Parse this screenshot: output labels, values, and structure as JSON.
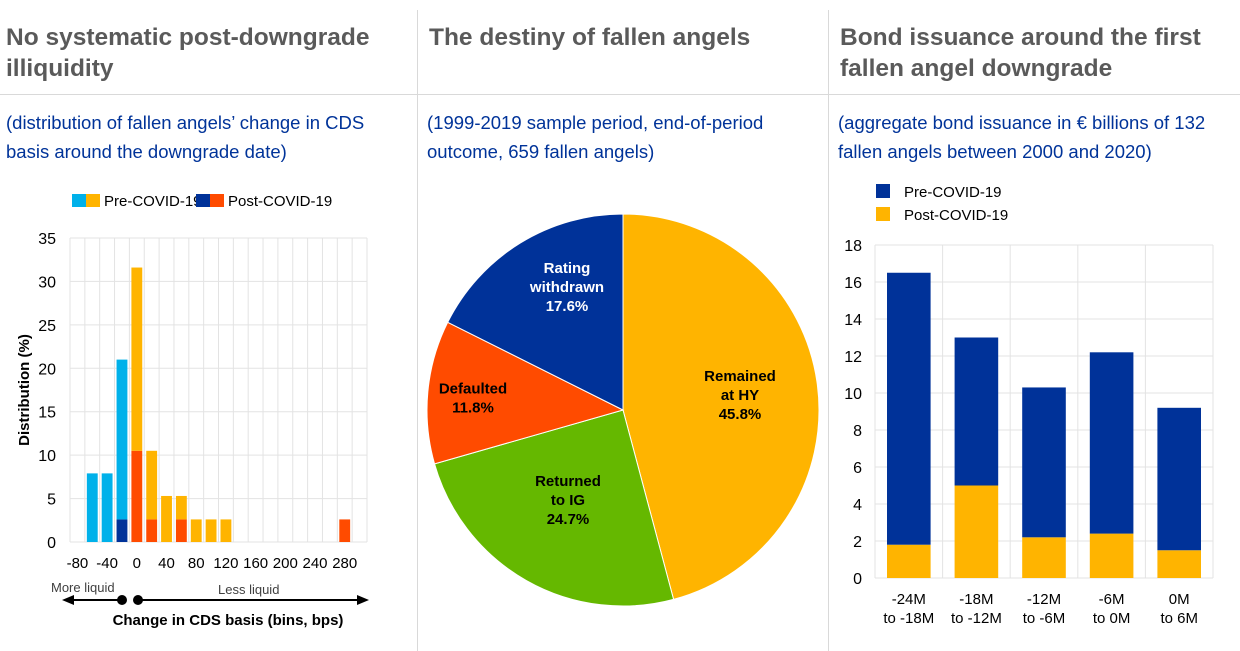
{
  "panels": [
    {
      "title": "No systematic post-downgrade illiquidity",
      "subtitle": "(distribution of fallen angels’ change in CDS basis around the downgrade date)"
    },
    {
      "title": "The destiny of fallen angels",
      "subtitle": "(1999-2019 sample period, end-of-period outcome, 659 fallen angels)"
    },
    {
      "title": "Bond issuance around the first fallen angel downgrade",
      "subtitle": "(aggregate bond issuance in € billions of 132 fallen angels between 2000 and 2020)"
    }
  ],
  "chart_data": [
    {
      "type": "bar",
      "stacked": true,
      "categories": [
        -80,
        -60,
        -40,
        -20,
        0,
        20,
        40,
        60,
        80,
        100,
        120,
        140,
        160,
        180,
        200,
        220,
        240,
        260,
        280,
        300
      ],
      "tick_labels": [
        "-80",
        "-40",
        "0",
        "40",
        "80",
        "120",
        "160",
        "200",
        "240",
        "280"
      ],
      "series": [
        {
          "name": "Post-COVID-19",
          "values": [
            0,
            0,
            0,
            2.6,
            10.5,
            2.6,
            0,
            2.6,
            0,
            0,
            0,
            0,
            0,
            0,
            0,
            0,
            0,
            0,
            2.6,
            0
          ]
        },
        {
          "name": "Pre-COVID-19",
          "values": [
            0,
            7.9,
            7.9,
            18.4,
            21.1,
            7.9,
            5.3,
            2.7,
            2.6,
            2.6,
            2.6,
            0,
            0,
            0,
            0,
            0,
            0,
            0,
            0,
            0
          ]
        }
      ],
      "legend": [
        "Pre-COVID-19",
        "Post-COVID-19"
      ],
      "colors": {
        "pre_neg": "#00b1ea",
        "pre_pos": "#ffb400",
        "post_neg": "#003299",
        "post_pos": "#ff4b00"
      },
      "ylabel": "Distribution (%)",
      "xlabel": "Change in CDS basis (bins, bps)",
      "annotations": [
        "More liquid",
        "Less liquid"
      ],
      "ylim": [
        0,
        35
      ],
      "yticks": [
        0,
        5,
        10,
        15,
        20,
        25,
        30,
        35
      ],
      "legend_position": "top"
    },
    {
      "type": "pie",
      "slices": [
        {
          "label": "Remained at HY",
          "lines": [
            "Remained",
            "at HY"
          ],
          "value": 45.8,
          "text": "45.8%",
          "color": "#ffb400",
          "text_color": "#000000"
        },
        {
          "label": "Returned to IG",
          "lines": [
            "Returned",
            "to IG"
          ],
          "value": 24.7,
          "text": "24.7%",
          "color": "#65b800",
          "text_color": "#000000"
        },
        {
          "label": "Defaulted",
          "lines": [
            "Defaulted"
          ],
          "value": 11.8,
          "text": "11.8%",
          "color": "#ff4b00",
          "text_color": "#000000"
        },
        {
          "label": "Rating withdrawn",
          "lines": [
            "Rating",
            "withdrawn"
          ],
          "value": 17.6,
          "text": "17.6%",
          "color": "#003299",
          "text_color": "#ffffff"
        }
      ]
    },
    {
      "type": "bar",
      "stacked": true,
      "categories": [
        [
          "-24M",
          "to -18M"
        ],
        [
          "-18M",
          "to -12M"
        ],
        [
          "-12M",
          "to -6M"
        ],
        [
          "-6M",
          "to 0M"
        ],
        [
          "0M",
          "to 6M"
        ]
      ],
      "series": [
        {
          "name": "Post-COVID-19",
          "values": [
            1.8,
            5.0,
            2.2,
            2.4,
            1.5
          ],
          "color": "#ffb400"
        },
        {
          "name": "Pre-COVID-19",
          "values": [
            14.7,
            8.0,
            8.1,
            9.8,
            7.7
          ],
          "color": "#003299"
        }
      ],
      "legend": [
        "Pre-COVID-19",
        "Post-COVID-19"
      ],
      "ylim": [
        0,
        18
      ],
      "yticks": [
        0,
        2,
        4,
        6,
        8,
        10,
        12,
        14,
        16,
        18
      ],
      "legend_position": "top-left"
    }
  ]
}
